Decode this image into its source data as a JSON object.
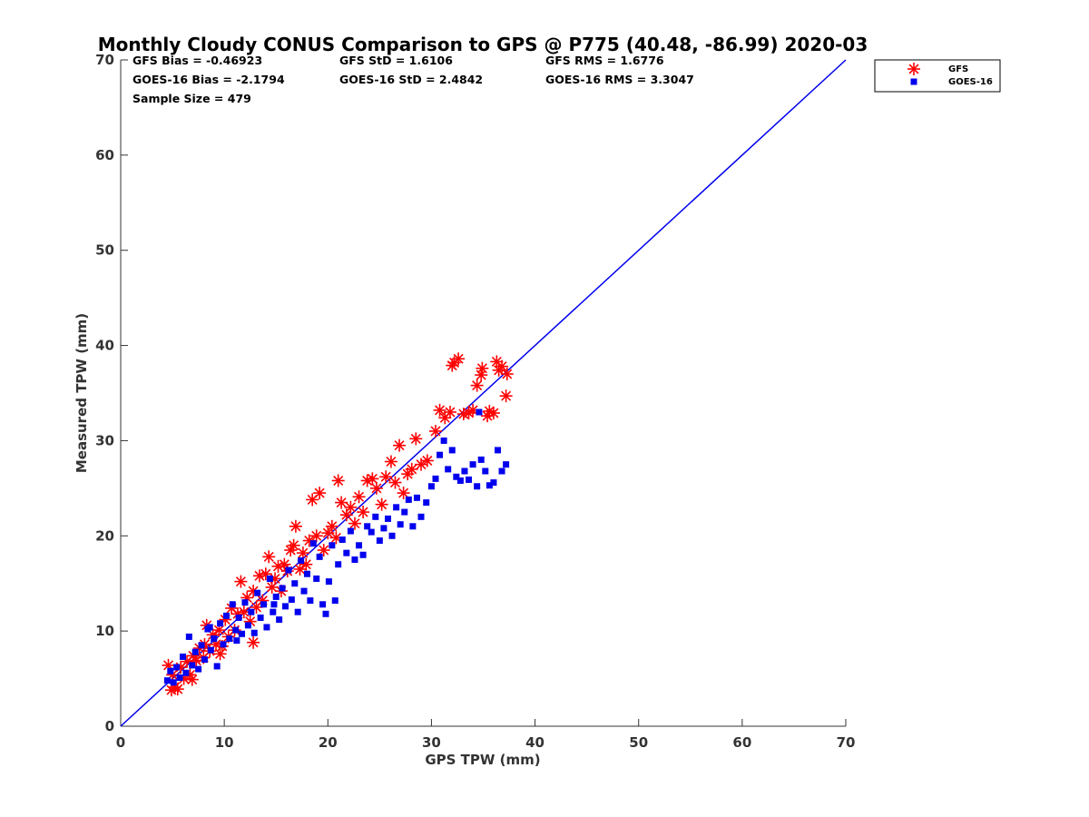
{
  "chart_data": {
    "type": "scatter",
    "title": "Monthly Cloudy CONUS Comparison to GPS @ P775 (40.48, -86.99) 2020-03",
    "xlabel": "GPS TPW (mm)",
    "ylabel": "Measured TPW (mm)",
    "xlim": [
      0,
      70
    ],
    "ylim": [
      0,
      70
    ],
    "xticks": [
      0,
      10,
      20,
      30,
      40,
      50,
      60,
      70
    ],
    "yticks": [
      0,
      10,
      20,
      30,
      40,
      50,
      60,
      70
    ],
    "grid": false,
    "legend_position": "outside-top-right",
    "stats": [
      [
        "GFS Bias = -0.46923",
        "GFS StD = 1.6106",
        "GFS RMS = 1.6776"
      ],
      [
        "GOES-16 Bias = -2.1794",
        "GOES-16 StD = 2.4842",
        "GOES-16 RMS = 3.3047"
      ],
      [
        "Sample Size = 479"
      ]
    ],
    "reference_line": {
      "x": [
        0,
        70
      ],
      "y": [
        0,
        70
      ],
      "color": "#0000ee"
    },
    "series": [
      {
        "name": "GFS",
        "marker": "asterisk",
        "color": "#ff0000",
        "points": [
          [
            4.6,
            6.4
          ],
          [
            4.9,
            3.8
          ],
          [
            5.2,
            4.1
          ],
          [
            5.5,
            3.9
          ],
          [
            5.0,
            5.4
          ],
          [
            5.8,
            6.2
          ],
          [
            6.1,
            5.0
          ],
          [
            6.4,
            6.8
          ],
          [
            6.7,
            5.4
          ],
          [
            7.0,
            7.4
          ],
          [
            7.3,
            6.9
          ],
          [
            6.9,
            4.9
          ],
          [
            7.6,
            8.2
          ],
          [
            8.0,
            7.2
          ],
          [
            8.3,
            10.6
          ],
          [
            8.6,
            7.9
          ],
          [
            8.9,
            9.6
          ],
          [
            9.2,
            8.6
          ],
          [
            9.5,
            10.1
          ],
          [
            9.8,
            8.4
          ],
          [
            10.1,
            11.2
          ],
          [
            10.4,
            9.4
          ],
          [
            10.7,
            12.4
          ],
          [
            11.0,
            10.1
          ],
          [
            11.3,
            11.8
          ],
          [
            11.6,
            15.2
          ],
          [
            11.9,
            12.0
          ],
          [
            12.2,
            13.5
          ],
          [
            12.5,
            11.0
          ],
          [
            12.8,
            14.2
          ],
          [
            13.1,
            12.5
          ],
          [
            13.4,
            15.8
          ],
          [
            13.7,
            13.2
          ],
          [
            14.0,
            16.0
          ],
          [
            14.3,
            17.8
          ],
          [
            14.6,
            14.6
          ],
          [
            14.9,
            15.5
          ],
          [
            15.2,
            16.8
          ],
          [
            15.5,
            14.2
          ],
          [
            15.8,
            17.0
          ],
          [
            16.1,
            16.3
          ],
          [
            16.4,
            18.5
          ],
          [
            16.7,
            19.0
          ],
          [
            16.9,
            21.0
          ],
          [
            17.3,
            16.5
          ],
          [
            17.6,
            18.2
          ],
          [
            17.9,
            17.0
          ],
          [
            18.2,
            19.5
          ],
          [
            18.5,
            23.8
          ],
          [
            18.9,
            20.0
          ],
          [
            19.2,
            24.5
          ],
          [
            19.6,
            18.5
          ],
          [
            20.0,
            20.3
          ],
          [
            20.4,
            21.0
          ],
          [
            20.8,
            19.8
          ],
          [
            21.0,
            25.8
          ],
          [
            21.3,
            23.5
          ],
          [
            21.8,
            22.2
          ],
          [
            22.2,
            23.0
          ],
          [
            22.6,
            21.3
          ],
          [
            23.0,
            24.1
          ],
          [
            23.4,
            22.5
          ],
          [
            23.8,
            25.8
          ],
          [
            24.3,
            26.0
          ],
          [
            24.7,
            25.0
          ],
          [
            25.2,
            23.3
          ],
          [
            25.6,
            26.2
          ],
          [
            26.1,
            27.8
          ],
          [
            26.5,
            25.6
          ],
          [
            26.9,
            29.5
          ],
          [
            27.3,
            24.5
          ],
          [
            27.7,
            26.5
          ],
          [
            28.1,
            27.0
          ],
          [
            28.5,
            30.2
          ],
          [
            29.0,
            27.5
          ],
          [
            29.6,
            27.9
          ],
          [
            30.4,
            31.0
          ],
          [
            30.8,
            33.2
          ],
          [
            31.3,
            32.4
          ],
          [
            31.8,
            33.0
          ],
          [
            32.2,
            38.2
          ],
          [
            32.6,
            38.6
          ],
          [
            33.1,
            32.8
          ],
          [
            33.6,
            32.9
          ],
          [
            34.0,
            33.2
          ],
          [
            34.4,
            35.8
          ],
          [
            34.8,
            36.9
          ],
          [
            34.9,
            37.6
          ],
          [
            35.4,
            32.6
          ],
          [
            36.0,
            32.9
          ],
          [
            36.3,
            38.3
          ],
          [
            36.8,
            37.8
          ],
          [
            37.2,
            34.7
          ],
          [
            37.3,
            37.0
          ],
          [
            36.5,
            37.4
          ],
          [
            32.0,
            37.9
          ],
          [
            35.6,
            33.1
          ],
          [
            12.8,
            8.8
          ],
          [
            9.6,
            7.6
          ],
          [
            8.1,
            8.6
          ]
        ]
      },
      {
        "name": "GOES-16",
        "marker": "square",
        "color": "#0000ee",
        "points": [
          [
            4.5,
            4.8
          ],
          [
            4.8,
            5.8
          ],
          [
            5.1,
            4.6
          ],
          [
            5.4,
            6.2
          ],
          [
            5.7,
            5.1
          ],
          [
            6.0,
            7.3
          ],
          [
            6.3,
            5.6
          ],
          [
            6.6,
            9.4
          ],
          [
            6.9,
            6.4
          ],
          [
            7.2,
            7.8
          ],
          [
            7.5,
            6.0
          ],
          [
            7.8,
            8.5
          ],
          [
            8.1,
            7.0
          ],
          [
            8.4,
            10.2
          ],
          [
            8.7,
            8.0
          ],
          [
            9.0,
            9.2
          ],
          [
            9.3,
            6.3
          ],
          [
            9.6,
            10.8
          ],
          [
            9.9,
            8.6
          ],
          [
            10.2,
            11.6
          ],
          [
            10.5,
            9.2
          ],
          [
            10.8,
            12.8
          ],
          [
            11.1,
            10.1
          ],
          [
            11.4,
            11.4
          ],
          [
            11.7,
            9.7
          ],
          [
            12.0,
            13.0
          ],
          [
            12.3,
            10.6
          ],
          [
            12.6,
            12.0
          ],
          [
            12.9,
            9.8
          ],
          [
            13.2,
            14.0
          ],
          [
            13.5,
            11.4
          ],
          [
            13.8,
            12.8
          ],
          [
            14.1,
            10.4
          ],
          [
            14.4,
            15.5
          ],
          [
            14.7,
            12.0
          ],
          [
            15.0,
            13.6
          ],
          [
            15.3,
            11.2
          ],
          [
            15.6,
            14.5
          ],
          [
            15.9,
            12.6
          ],
          [
            16.2,
            16.4
          ],
          [
            16.5,
            13.3
          ],
          [
            16.8,
            15.0
          ],
          [
            17.1,
            12.0
          ],
          [
            17.4,
            17.4
          ],
          [
            17.7,
            14.2
          ],
          [
            18.0,
            16.0
          ],
          [
            18.3,
            13.2
          ],
          [
            18.6,
            19.2
          ],
          [
            18.9,
            15.5
          ],
          [
            19.2,
            17.8
          ],
          [
            19.5,
            12.8
          ],
          [
            19.8,
            11.8
          ],
          [
            20.1,
            15.2
          ],
          [
            20.4,
            19.0
          ],
          [
            20.7,
            13.2
          ],
          [
            21.0,
            17.0
          ],
          [
            21.4,
            19.6
          ],
          [
            21.8,
            18.2
          ],
          [
            22.2,
            20.5
          ],
          [
            22.6,
            17.5
          ],
          [
            23.0,
            19.0
          ],
          [
            23.4,
            18.0
          ],
          [
            23.8,
            21.0
          ],
          [
            24.2,
            20.4
          ],
          [
            24.6,
            22.0
          ],
          [
            25.0,
            19.5
          ],
          [
            25.4,
            20.8
          ],
          [
            25.8,
            21.8
          ],
          [
            26.2,
            20.0
          ],
          [
            26.6,
            23.0
          ],
          [
            27.0,
            21.2
          ],
          [
            27.4,
            22.5
          ],
          [
            27.8,
            23.8
          ],
          [
            28.2,
            21.0
          ],
          [
            28.6,
            24.0
          ],
          [
            29.0,
            22.0
          ],
          [
            29.5,
            23.5
          ],
          [
            30.0,
            25.2
          ],
          [
            30.4,
            26.0
          ],
          [
            30.8,
            28.5
          ],
          [
            31.2,
            30.0
          ],
          [
            31.6,
            27.0
          ],
          [
            32.0,
            29.0
          ],
          [
            32.4,
            26.2
          ],
          [
            32.8,
            25.8
          ],
          [
            33.2,
            26.8
          ],
          [
            33.6,
            25.9
          ],
          [
            34.0,
            27.5
          ],
          [
            34.4,
            25.2
          ],
          [
            34.8,
            28.0
          ],
          [
            35.2,
            26.8
          ],
          [
            35.6,
            25.3
          ],
          [
            36.0,
            25.6
          ],
          [
            36.4,
            29.0
          ],
          [
            36.8,
            26.8
          ],
          [
            37.2,
            27.5
          ],
          [
            34.6,
            33.0
          ],
          [
            8.6,
            10.4
          ],
          [
            11.2,
            9.0
          ],
          [
            14.8,
            12.8
          ]
        ]
      }
    ]
  }
}
